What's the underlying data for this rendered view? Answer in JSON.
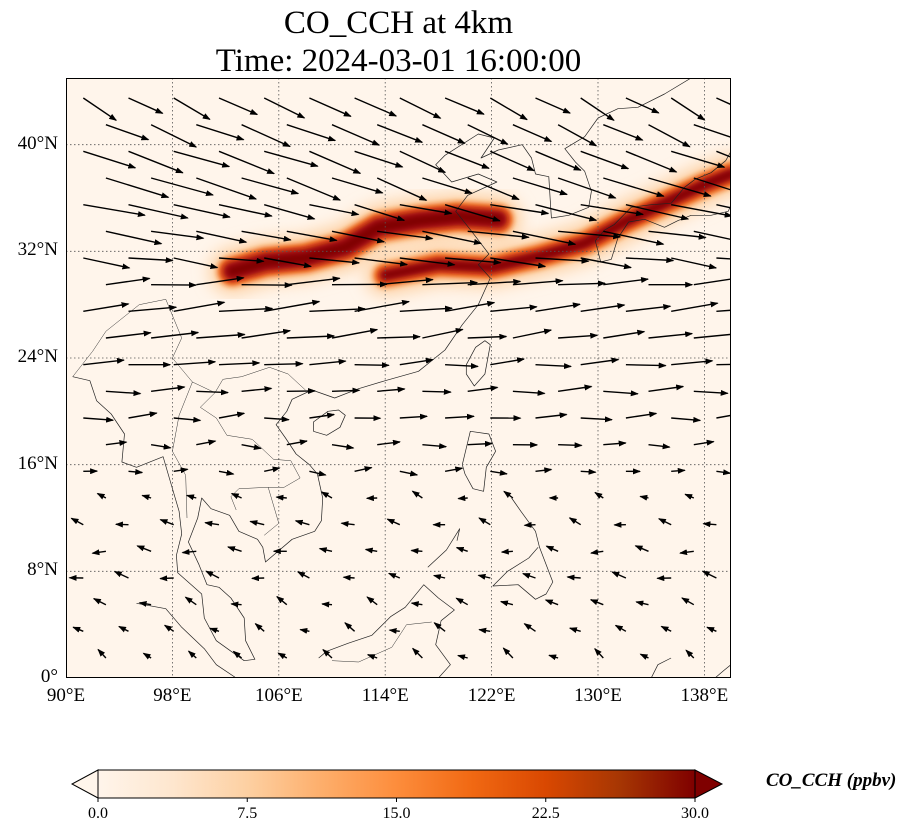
{
  "title": {
    "line1": "CO_CCH at 4km",
    "line2": "Time: 2024-03-01 16:00:00"
  },
  "map": {
    "extent": {
      "lon_min": 90,
      "lon_max": 140,
      "lat_min": 0,
      "lat_max": 45
    },
    "background_color": "#fff5eb",
    "gridlines": "dotted",
    "x_ticks": [
      {
        "lon": 90,
        "label": "90°E"
      },
      {
        "lon": 98,
        "label": "98°E"
      },
      {
        "lon": 106,
        "label": "106°E"
      },
      {
        "lon": 114,
        "label": "114°E"
      },
      {
        "lon": 122,
        "label": "122°E"
      },
      {
        "lon": 130,
        "label": "130°E"
      },
      {
        "lon": 138,
        "label": "138°E"
      }
    ],
    "y_ticks": [
      {
        "lat": 0,
        "label": "0°"
      },
      {
        "lat": 8,
        "label": "8°N"
      },
      {
        "lat": 16,
        "label": "16°N"
      },
      {
        "lat": 24,
        "label": "24°N"
      },
      {
        "lat": 32,
        "label": "32°N"
      },
      {
        "lat": 40,
        "label": "40°N"
      }
    ],
    "plume_color_scale": [
      "#fdd0a2",
      "#f16913",
      "#a50f15",
      "#7f0000"
    ],
    "plume_core": [
      [
        102.5,
        30.5
      ],
      [
        105.0,
        31.2
      ],
      [
        108.0,
        31.5
      ],
      [
        111.0,
        32.3
      ],
      [
        113.5,
        33.8
      ],
      [
        116.5,
        34.3
      ],
      [
        119.5,
        34.6
      ],
      [
        122.5,
        34.4
      ]
    ],
    "plume_band": [
      [
        114.0,
        30.2
      ],
      [
        118.0,
        31.0
      ],
      [
        122.0,
        30.8
      ],
      [
        125.5,
        31.6
      ],
      [
        129.0,
        32.6
      ],
      [
        132.0,
        34.2
      ],
      [
        135.0,
        35.6
      ],
      [
        138.0,
        37.0
      ],
      [
        140.0,
        37.8
      ]
    ],
    "wind_field": {
      "vector_color": "#000000",
      "rows": [
        {
          "lat": 43.5,
          "u": 6,
          "v": -3
        },
        {
          "lat": 41.5,
          "u": 7,
          "v": -3
        },
        {
          "lat": 39.5,
          "u": 8,
          "v": -3
        },
        {
          "lat": 37.5,
          "u": 9,
          "v": -3
        },
        {
          "lat": 35.5,
          "u": 9,
          "v": -2
        },
        {
          "lat": 33.5,
          "u": 9,
          "v": -1.5
        },
        {
          "lat": 31.5,
          "u": 8,
          "v": -1
        },
        {
          "lat": 29.5,
          "u": 8,
          "v": 0.5
        },
        {
          "lat": 27.5,
          "u": 8,
          "v": 1
        },
        {
          "lat": 25.5,
          "u": 7,
          "v": 0.8
        },
        {
          "lat": 23.5,
          "u": 6,
          "v": 0.3
        },
        {
          "lat": 21.5,
          "u": 5,
          "v": 0.2
        },
        {
          "lat": 19.5,
          "u": 4.5,
          "v": 0.2
        },
        {
          "lat": 17.5,
          "u": 3.5,
          "v": 0
        },
        {
          "lat": 15.5,
          "u": 2.5,
          "v": 0
        },
        {
          "lat": 13.5,
          "u": -1.5,
          "v": 0.5
        },
        {
          "lat": 11.5,
          "u": -2,
          "v": 0.5
        },
        {
          "lat": 9.5,
          "u": -2,
          "v": 0.3
        },
        {
          "lat": 7.5,
          "u": -2,
          "v": 0.5
        },
        {
          "lat": 5.5,
          "u": -1.8,
          "v": 0.7
        },
        {
          "lat": 3.5,
          "u": -1.6,
          "v": 0.8
        },
        {
          "lat": 1.5,
          "u": -1.4,
          "v": 1
        }
      ]
    }
  },
  "colorbar": {
    "min": 0.0,
    "max": 30.0,
    "extend": "both",
    "colormap": [
      "#fff5eb",
      "#fee6ce",
      "#fdd0a2",
      "#fdae6b",
      "#fd8d3c",
      "#f16913",
      "#d94801",
      "#a63603",
      "#7f0000"
    ],
    "ticks": [
      {
        "value": 0.0,
        "label": "0.0"
      },
      {
        "value": 7.5,
        "label": "7.5"
      },
      {
        "value": 15.0,
        "label": "15.0"
      },
      {
        "value": 22.5,
        "label": "22.5"
      },
      {
        "value": 30.0,
        "label": "30.0"
      }
    ],
    "label": "CO_CCH (ppbv)"
  }
}
